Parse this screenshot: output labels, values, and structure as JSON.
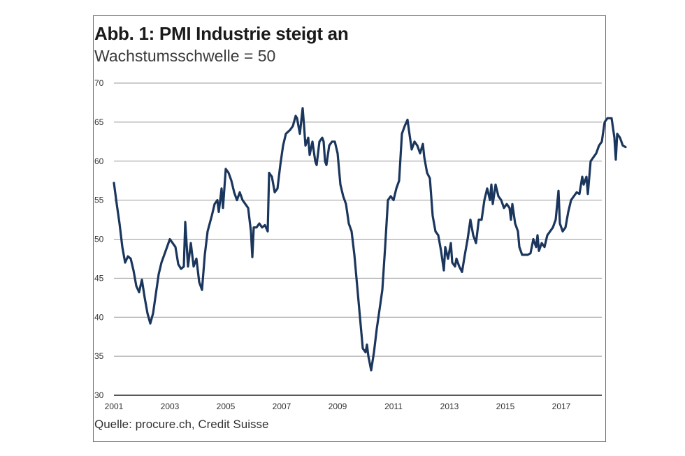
{
  "chart_data": {
    "type": "line",
    "title": "Abb. 1: PMI Industrie steigt an",
    "subtitle": "Wachstumsschwelle = 50",
    "source": "Quelle: procure.ch, Credit Suisse",
    "xlabel": "",
    "ylabel": "",
    "xlim": [
      2001,
      2018.6
    ],
    "ylim": [
      30,
      70
    ],
    "yticks": [
      70,
      65,
      60,
      55,
      50,
      45,
      40,
      35,
      30
    ],
    "xticks": [
      "2001",
      "2003",
      "2005",
      "2007",
      "2009",
      "2011",
      "2013",
      "2015",
      "2017"
    ],
    "grid": true,
    "legend": "none",
    "line_color": "#1b365d",
    "series": [
      {
        "name": "PMI Industrie",
        "points": [
          [
            2001.0,
            57.2
          ],
          [
            2001.1,
            54.5
          ],
          [
            2001.2,
            52.0
          ],
          [
            2001.3,
            49.0
          ],
          [
            2001.4,
            47.0
          ],
          [
            2001.5,
            47.8
          ],
          [
            2001.6,
            47.5
          ],
          [
            2001.7,
            46.0
          ],
          [
            2001.8,
            44.0
          ],
          [
            2001.9,
            43.2
          ],
          [
            2002.0,
            44.8
          ],
          [
            2002.1,
            42.5
          ],
          [
            2002.2,
            40.5
          ],
          [
            2002.3,
            39.2
          ],
          [
            2002.4,
            40.5
          ],
          [
            2002.5,
            43.0
          ],
          [
            2002.6,
            45.5
          ],
          [
            2002.7,
            47.0
          ],
          [
            2002.8,
            48.0
          ],
          [
            2002.9,
            49.0
          ],
          [
            2003.0,
            50.0
          ],
          [
            2003.1,
            49.5
          ],
          [
            2003.2,
            49.0
          ],
          [
            2003.3,
            46.8
          ],
          [
            2003.4,
            46.2
          ],
          [
            2003.5,
            46.5
          ],
          [
            2003.55,
            52.2
          ],
          [
            2003.65,
            46.5
          ],
          [
            2003.75,
            49.5
          ],
          [
            2003.85,
            46.5
          ],
          [
            2003.95,
            47.5
          ],
          [
            2004.05,
            44.5
          ],
          [
            2004.15,
            43.5
          ],
          [
            2004.25,
            48.0
          ],
          [
            2004.35,
            51.0
          ],
          [
            2004.5,
            53.0
          ],
          [
            2004.6,
            54.5
          ],
          [
            2004.7,
            55.0
          ],
          [
            2004.75,
            53.5
          ],
          [
            2004.85,
            56.5
          ],
          [
            2004.9,
            54.0
          ],
          [
            2005.0,
            59.0
          ],
          [
            2005.1,
            58.5
          ],
          [
            2005.2,
            57.5
          ],
          [
            2005.3,
            56.0
          ],
          [
            2005.4,
            55.0
          ],
          [
            2005.5,
            56.0
          ],
          [
            2005.6,
            55.0
          ],
          [
            2005.7,
            54.5
          ],
          [
            2005.8,
            54.0
          ],
          [
            2005.9,
            51.0
          ],
          [
            2005.95,
            47.7
          ],
          [
            2006.0,
            51.5
          ],
          [
            2006.1,
            51.5
          ],
          [
            2006.2,
            52.0
          ],
          [
            2006.3,
            51.5
          ],
          [
            2006.4,
            51.8
          ],
          [
            2006.5,
            51.0
          ],
          [
            2006.55,
            58.5
          ],
          [
            2006.65,
            58.0
          ],
          [
            2006.75,
            56.0
          ],
          [
            2006.85,
            56.5
          ],
          [
            2006.95,
            59.5
          ],
          [
            2007.05,
            62.0
          ],
          [
            2007.15,
            63.5
          ],
          [
            2007.3,
            64.0
          ],
          [
            2007.4,
            64.5
          ],
          [
            2007.5,
            65.8
          ],
          [
            2007.55,
            65.5
          ],
          [
            2007.65,
            63.5
          ],
          [
            2007.75,
            66.8
          ],
          [
            2007.8,
            64.5
          ],
          [
            2007.85,
            62.0
          ],
          [
            2007.95,
            63.0
          ],
          [
            2008.0,
            60.8
          ],
          [
            2008.1,
            62.5
          ],
          [
            2008.2,
            60.0
          ],
          [
            2008.25,
            59.5
          ],
          [
            2008.35,
            62.5
          ],
          [
            2008.45,
            63.0
          ],
          [
            2008.5,
            62.5
          ],
          [
            2008.55,
            60.0
          ],
          [
            2008.6,
            59.5
          ],
          [
            2008.7,
            62.0
          ],
          [
            2008.8,
            62.5
          ],
          [
            2008.9,
            62.5
          ],
          [
            2009.0,
            61.0
          ],
          [
            2009.1,
            57.0
          ],
          [
            2009.2,
            55.5
          ],
          [
            2009.3,
            54.5
          ],
          [
            2009.4,
            52.0
          ],
          [
            2009.5,
            51.0
          ],
          [
            2009.6,
            48.0
          ],
          [
            2009.7,
            44.0
          ],
          [
            2009.8,
            40.0
          ],
          [
            2009.9,
            36.0
          ],
          [
            2010.0,
            35.5
          ],
          [
            2010.05,
            36.5
          ],
          [
            2010.1,
            35.0
          ],
          [
            2010.2,
            33.2
          ],
          [
            2010.3,
            35.5
          ],
          [
            2010.4,
            38.5
          ],
          [
            2010.5,
            41.0
          ],
          [
            2010.6,
            43.5
          ],
          [
            2010.7,
            49.0
          ],
          [
            2010.8,
            55.0
          ],
          [
            2010.9,
            55.5
          ],
          [
            2011.0,
            55.0
          ],
          [
            2011.1,
            56.5
          ],
          [
            2011.2,
            57.5
          ],
          [
            2011.3,
            63.5
          ],
          [
            2011.4,
            64.5
          ],
          [
            2011.5,
            65.3
          ],
          [
            2011.55,
            64.0
          ],
          [
            2011.65,
            61.5
          ],
          [
            2011.75,
            62.5
          ],
          [
            2011.85,
            62.0
          ],
          [
            2011.95,
            61.0
          ],
          [
            2012.05,
            62.2
          ],
          [
            2012.1,
            60.5
          ],
          [
            2012.2,
            58.5
          ],
          [
            2012.3,
            57.8
          ],
          [
            2012.4,
            53.0
          ],
          [
            2012.5,
            51.0
          ],
          [
            2012.6,
            50.5
          ],
          [
            2012.7,
            48.5
          ],
          [
            2012.8,
            46.0
          ],
          [
            2012.85,
            49.0
          ],
          [
            2012.95,
            47.5
          ],
          [
            2013.05,
            49.5
          ],
          [
            2013.1,
            47.0
          ],
          [
            2013.2,
            46.5
          ],
          [
            2013.25,
            47.5
          ],
          [
            2013.35,
            46.5
          ],
          [
            2013.45,
            45.8
          ],
          [
            2013.55,
            48.0
          ],
          [
            2013.65,
            50.0
          ],
          [
            2013.75,
            52.5
          ],
          [
            2013.85,
            50.5
          ],
          [
            2013.95,
            49.5
          ],
          [
            2014.05,
            52.5
          ],
          [
            2014.15,
            52.5
          ],
          [
            2014.25,
            55.0
          ],
          [
            2014.35,
            56.5
          ],
          [
            2014.45,
            55.0
          ],
          [
            2014.5,
            57.0
          ],
          [
            2014.55,
            54.5
          ],
          [
            2014.65,
            57.0
          ],
          [
            2014.75,
            55.5
          ],
          [
            2014.85,
            55.0
          ],
          [
            2014.95,
            54.0
          ],
          [
            2015.05,
            54.5
          ],
          [
            2015.15,
            54.0
          ],
          [
            2015.2,
            52.5
          ],
          [
            2015.25,
            54.5
          ],
          [
            2015.35,
            52.0
          ],
          [
            2015.45,
            51.0
          ],
          [
            2015.5,
            49.0
          ],
          [
            2015.6,
            48.0
          ],
          [
            2015.8,
            48.0
          ],
          [
            2015.9,
            48.2
          ],
          [
            2016.0,
            50.0
          ],
          [
            2016.1,
            49.0
          ],
          [
            2016.15,
            50.5
          ],
          [
            2016.2,
            48.5
          ],
          [
            2016.3,
            49.5
          ],
          [
            2016.4,
            49.0
          ],
          [
            2016.5,
            50.5
          ],
          [
            2016.6,
            51.0
          ],
          [
            2016.7,
            51.5
          ],
          [
            2016.8,
            52.5
          ],
          [
            2016.9,
            56.2
          ],
          [
            2016.95,
            52.0
          ],
          [
            2017.05,
            51.0
          ],
          [
            2017.15,
            51.5
          ],
          [
            2017.25,
            53.5
          ],
          [
            2017.35,
            55.0
          ],
          [
            2017.45,
            55.5
          ],
          [
            2017.55,
            56.0
          ],
          [
            2017.65,
            55.8
          ],
          [
            2017.75,
            58.0
          ],
          [
            2017.8,
            57.0
          ],
          [
            2017.9,
            58.0
          ],
          [
            2017.95,
            55.8
          ],
          [
            2018.05,
            60.0
          ],
          [
            2018.15,
            60.5
          ],
          [
            2018.25,
            61.0
          ],
          [
            2018.35,
            62.0
          ],
          [
            2018.45,
            62.5
          ],
          [
            2018.55,
            65.0
          ],
          [
            2018.65,
            65.5
          ],
          [
            2018.8,
            65.5
          ],
          [
            2018.9,
            63.0
          ],
          [
            2018.95,
            60.2
          ],
          [
            2019.0,
            63.5
          ],
          [
            2019.1,
            63.0
          ],
          [
            2019.2,
            62.0
          ],
          [
            2019.3,
            61.8
          ]
        ]
      }
    ]
  }
}
